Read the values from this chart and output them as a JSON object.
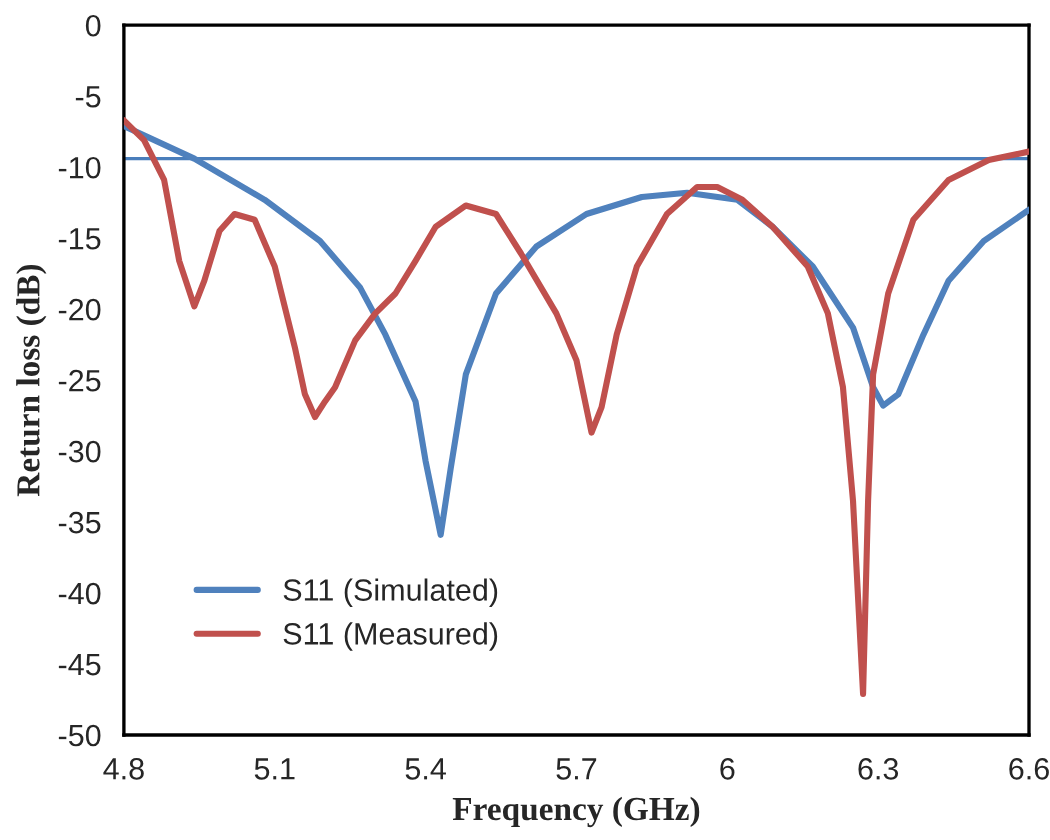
{
  "chart_data": {
    "type": "line",
    "xlabel": "Frequency (GHz)",
    "ylabel": "Return loss (dB)",
    "xlim": [
      4.8,
      6.6
    ],
    "xticks": [
      4.8,
      5.1,
      5.4,
      5.7,
      6,
      6.3,
      6.6
    ],
    "ylim": [
      -50,
      0
    ],
    "yticks": [
      -50,
      -45,
      -40,
      -35,
      -30,
      -25,
      -20,
      -15,
      -10,
      -5,
      0
    ],
    "grid": false,
    "legend": "bottom left",
    "line_style": "solid",
    "marker": "none",
    "ref_lines": [
      {
        "axis": "y",
        "value": -9.4,
        "color": "#4a7ebb"
      }
    ],
    "series": [
      {
        "name": "S11 (Simulated)",
        "color": "#4f81bd",
        "x": [
          4.8,
          4.94,
          5.08,
          5.19,
          5.27,
          5.32,
          5.38,
          5.4,
          5.43,
          5.45,
          5.48,
          5.54,
          5.62,
          5.72,
          5.83,
          5.92,
          6.02,
          6.09,
          6.17,
          6.25,
          6.29,
          6.31,
          6.34,
          6.39,
          6.44,
          6.51,
          6.6
        ],
        "values": [
          -7.1,
          -9.4,
          -12.3,
          -15.2,
          -18.5,
          -21.8,
          -26.5,
          -30.7,
          -35.9,
          -31.2,
          -24.6,
          -18.9,
          -15.6,
          -13.3,
          -12.1,
          -11.8,
          -12.3,
          -14.2,
          -17.0,
          -21.3,
          -25.5,
          -26.8,
          -26.0,
          -21.8,
          -18.0,
          -15.2,
          -13.0
        ]
      },
      {
        "name": "S11 (Measured)",
        "color": "#c0504d",
        "x": [
          4.8,
          4.84,
          4.88,
          4.91,
          4.94,
          4.96,
          4.99,
          5.02,
          5.06,
          5.1,
          5.14,
          5.16,
          5.18,
          5.2,
          5.22,
          5.26,
          5.3,
          5.34,
          5.38,
          5.42,
          5.48,
          5.54,
          5.59,
          5.66,
          5.7,
          5.73,
          5.75,
          5.78,
          5.82,
          5.88,
          5.94,
          5.98,
          6.03,
          6.09,
          6.16,
          6.2,
          6.23,
          6.25,
          6.27,
          6.28,
          6.29,
          6.32,
          6.37,
          6.44,
          6.52,
          6.6
        ],
        "values": [
          -6.7,
          -8.1,
          -10.9,
          -16.6,
          -19.8,
          -18.0,
          -14.5,
          -13.3,
          -13.7,
          -17.0,
          -22.7,
          -26.0,
          -27.6,
          -26.5,
          -25.5,
          -22.2,
          -20.3,
          -18.9,
          -16.6,
          -14.2,
          -12.7,
          -13.3,
          -16.1,
          -20.3,
          -23.6,
          -28.7,
          -26.9,
          -21.8,
          -17.0,
          -13.3,
          -11.4,
          -11.4,
          -12.3,
          -14.2,
          -17.0,
          -20.3,
          -25.5,
          -33.5,
          -47.1,
          -33.5,
          -24.6,
          -18.9,
          -13.7,
          -10.9,
          -9.5,
          -8.9
        ]
      }
    ]
  }
}
